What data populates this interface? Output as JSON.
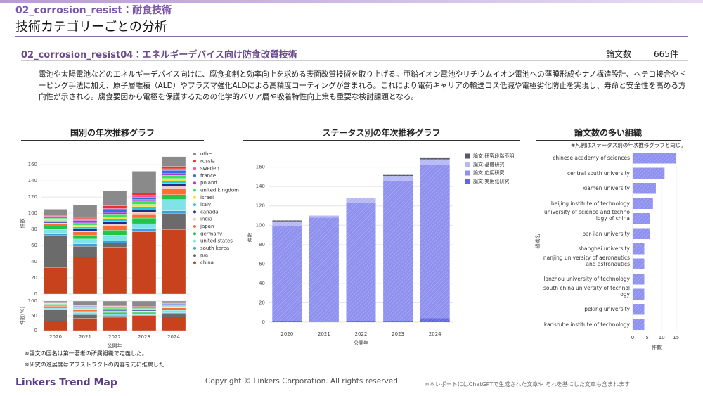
{
  "header": {
    "category": "02_corrosion_resist：耐食技術",
    "page_title": "技術カテゴリーごとの分析",
    "subtitle": "02_corrosion_resist04：エネルギーデバイス向け防食改質技術",
    "count_label": "論文数",
    "count": "665件",
    "description": "電池や太陽電池などのエネルギーデバイス向けに、腐食抑制と効率向上を求める表面改質技術を取り上げる。亜鉛イオン電池やリチウムイオン電池への薄膜形成やナノ構造設計、ヘテロ接合やドーピング手法に加え、原子層堆積（ALD）やプラズマ強化ALDによる高精度コーティングが含まれる。これにより電荷キャリアの輸送ロス低減や電極劣化防止を実現し、寿命と安全性を高める方向性が示される。腐食要因から電極を保護するための化学的バリア層や吸着特性向上策も重要な検討課題となる。",
    "sections": [
      "国別の年次推移グラフ",
      "ステータス別の年次推移グラフ",
      "論文数の多い組織"
    ],
    "legend_note": "※凡例はステータス別の年次推移グラフと同じ。",
    "notes": [
      "※論文の国名は第一著者の所属組織で定義した。",
      "※研究の進展度はアブストラクトの内容を元に推察した"
    ]
  },
  "footer": {
    "brand": "Linkers Trend Map",
    "copyright": "Copyright © Linkers Corporation. All rights reserved.",
    "disclaimer": "※本レポートにはChatGPTで生成された文章や それを基にした文章も含まれます"
  },
  "chart_data": [
    {
      "type": "stacked-bar",
      "ylabel": "件数",
      "xlabel": "公開年",
      "categories": [
        "2020",
        "2021",
        "2022",
        "2023",
        "2024"
      ],
      "ylim": [
        0,
        175
      ],
      "yticks": [
        0,
        20,
        40,
        60,
        80,
        100,
        120,
        140,
        160
      ],
      "grid": true,
      "series": [
        {
          "name": "other",
          "color": "#8a8a8a",
          "values": [
            7,
            16,
            19,
            27,
            12
          ]
        },
        {
          "name": "russia",
          "color": "#e8322b",
          "values": [
            1,
            2,
            3,
            3,
            3
          ]
        },
        {
          "name": "sweden",
          "color": "#ff4fa3",
          "values": [
            1,
            1,
            2,
            2,
            2
          ]
        },
        {
          "name": "france",
          "color": "#2f6fe4",
          "values": [
            1,
            2,
            3,
            3,
            4
          ]
        },
        {
          "name": "poland",
          "color": "#a53ad9",
          "values": [
            1,
            1,
            2,
            2,
            2
          ]
        },
        {
          "name": "united kingdom",
          "color": "#3fe05a",
          "values": [
            2,
            3,
            4,
            4,
            4
          ]
        },
        {
          "name": "israel",
          "color": "#f2e33a",
          "values": [
            1,
            2,
            2,
            3,
            3
          ]
        },
        {
          "name": "italy",
          "color": "#28c7d6",
          "values": [
            1,
            2,
            3,
            3,
            3
          ]
        },
        {
          "name": "canada",
          "color": "#1d2e8f",
          "values": [
            2,
            3,
            4,
            4,
            4
          ]
        },
        {
          "name": "india",
          "color": "#f7c9bd",
          "values": [
            1,
            1,
            2,
            2,
            2
          ]
        },
        {
          "name": "japan",
          "color": "#fa6f35",
          "values": [
            3,
            4,
            5,
            5,
            8
          ]
        },
        {
          "name": "germany",
          "color": "#23c44a",
          "values": [
            4,
            5,
            6,
            7,
            6
          ]
        },
        {
          "name": "united states",
          "color": "#7fe3e8",
          "values": [
            5,
            6,
            7,
            6,
            14
          ]
        },
        {
          "name": "south korea",
          "color": "#3aa0e0",
          "values": [
            2,
            3,
            3,
            4,
            3
          ]
        },
        {
          "name": "n/a",
          "color": "#6b6b6b",
          "values": [
            40,
            13,
            5,
            0,
            20
          ]
        },
        {
          "name": "china",
          "color": "#c8421e",
          "values": [
            33,
            46,
            58,
            77,
            80
          ]
        }
      ]
    },
    {
      "type": "percent-stacked-bar",
      "ylabel": "件数(%)",
      "ylim": [
        0,
        100
      ],
      "yticks": [
        0,
        50,
        100
      ],
      "grid": true
    },
    {
      "type": "stacked-bar",
      "ylabel": "件数",
      "xlabel": "公開年",
      "categories": [
        "2020",
        "2021",
        "2022",
        "2023",
        "2024"
      ],
      "ylim": [
        0,
        175
      ],
      "yticks": [
        0,
        20,
        40,
        60,
        80,
        100,
        120,
        140,
        160
      ],
      "grid": true,
      "series": [
        {
          "name": "論文:研究段階不明",
          "color": "#55576a",
          "values": [
            1,
            0,
            0,
            1,
            2
          ]
        },
        {
          "name": "論文:基礎研究",
          "color": "#b7b9f4",
          "values": [
            5,
            2,
            5,
            5,
            6
          ]
        },
        {
          "name": "論文:応用研究",
          "color": "#8f91ef",
          "values": [
            98,
            108,
            122,
            145,
            158
          ]
        },
        {
          "name": "論文:実用化研究",
          "color": "#6467e2",
          "values": [
            1,
            0,
            1,
            1,
            4
          ]
        }
      ]
    },
    {
      "type": "hbar",
      "ylabel": "組織名",
      "xlabel": "件数",
      "color": "#8f91ef",
      "categories": [
        "chinese academy of sciences",
        "central south university",
        "xiamen university",
        "beijing institute of technology",
        "university of science and technology of china",
        "bar-ilan university",
        "shanghai university",
        "nanjing university of aeronautics and astronautics",
        "lanzhou university of technology",
        "south china university of technology",
        "peking university",
        "karlsruhe institute of technology"
      ],
      "values": [
        15,
        11,
        8,
        7,
        6,
        6,
        4,
        4,
        4,
        4,
        4,
        4
      ],
      "xlim": [
        0,
        16.5
      ],
      "xticks": [
        0,
        5,
        10,
        15
      ],
      "grid": true
    }
  ]
}
